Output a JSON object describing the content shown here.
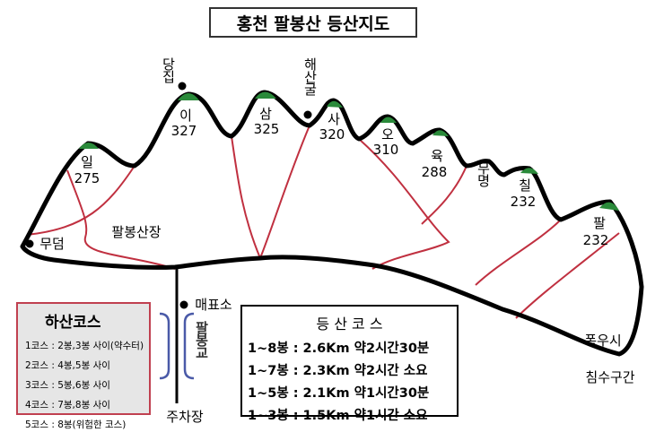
{
  "title": "홍천 팔봉산 등산지도",
  "peaks": [
    {
      "name": "일",
      "height": "275"
    },
    {
      "name": "이",
      "height": "327"
    },
    {
      "name": "삼",
      "height": "325"
    },
    {
      "name": "사",
      "height": "320"
    },
    {
      "name": "오",
      "height": "310"
    },
    {
      "name": "육",
      "height": "288"
    },
    {
      "name": "칠",
      "height": "232"
    },
    {
      "name": "팔",
      "height": "232"
    }
  ],
  "places": {
    "shrine": "당집",
    "cave": "해산굴",
    "nameless": "무명",
    "grave": "무덤",
    "lodge": "팔봉산장",
    "ticket": "매표소",
    "bridge": "팔봉교",
    "parking": "주차장",
    "flood_1": "폭우시",
    "flood_2": "침수구간"
  },
  "descent": {
    "title": "하산코스",
    "rows": [
      "1코스 : 2봉,3봉 사이(약수터)",
      "2코스 : 4봉,5봉 사이",
      "3코스 : 5봉,6봉 사이",
      "4코스 : 7봉,8봉 사이",
      "5코스 : 8봉(위험한 코스)"
    ]
  },
  "courses": {
    "title": "등 산 코 스",
    "rows": [
      "1~8봉 : 2.6Km 약2시간30분",
      "1~7봉 : 2.3Km 약2시간 소요",
      "1~5봉 : 2.1Km 약1시간30분",
      "1~3봉 : 1.5Km 약1시간 소요"
    ]
  }
}
